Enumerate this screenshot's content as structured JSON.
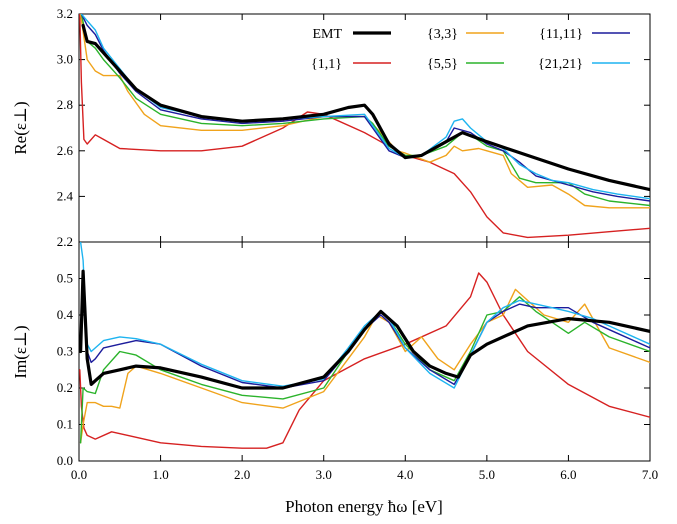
{
  "colors": {
    "EMT": "#000000",
    "{1,1}": "#d62121",
    "{3,3}": "#f0a31c",
    "{5,5}": "#2bb32b",
    "{11,11}": "#1c1c9c",
    "{21,21}": "#1eb4f0"
  },
  "chart_data": [
    {
      "type": "line",
      "panel": "top",
      "ylabel": "Re(ε⊥)",
      "xlim": [
        0,
        7
      ],
      "ylim": [
        2.2,
        3.2
      ],
      "yticks": [
        "2.2",
        "2.4",
        "2.6",
        "2.8",
        "3.0",
        "3.2"
      ],
      "ytick_values": [
        2.2,
        2.4,
        2.6,
        2.8,
        3.0,
        3.2
      ],
      "legend": "top-right",
      "series": [
        {
          "name": "EMT",
          "x": [
            0.05,
            0.1,
            0.2,
            0.3,
            0.5,
            0.7,
            1.0,
            1.5,
            2.0,
            2.5,
            3.0,
            3.3,
            3.5,
            3.6,
            3.8,
            4.0,
            4.2,
            4.5,
            4.7,
            5.0,
            5.5,
            6.0,
            6.5,
            7.0
          ],
          "y": [
            3.15,
            3.08,
            3.07,
            3.03,
            2.95,
            2.87,
            2.8,
            2.75,
            2.73,
            2.74,
            2.76,
            2.79,
            2.8,
            2.76,
            2.63,
            2.57,
            2.58,
            2.64,
            2.68,
            2.64,
            2.58,
            2.52,
            2.47,
            2.43
          ]
        },
        {
          "name": "{1,1}",
          "x": [
            0.01,
            0.03,
            0.06,
            0.1,
            0.2,
            0.3,
            0.5,
            1.0,
            1.5,
            2.0,
            2.5,
            2.8,
            3.0,
            3.5,
            4.0,
            4.3,
            4.6,
            4.8,
            5.0,
            5.2,
            5.5,
            6.0,
            6.5,
            7.0
          ],
          "y": [
            3.2,
            2.9,
            2.65,
            2.63,
            2.67,
            2.65,
            2.61,
            2.6,
            2.6,
            2.62,
            2.7,
            2.77,
            2.76,
            2.68,
            2.58,
            2.55,
            2.5,
            2.42,
            2.31,
            2.24,
            2.22,
            2.23,
            2.245,
            2.26
          ]
        },
        {
          "name": "{3,3}",
          "x": [
            0.02,
            0.1,
            0.2,
            0.3,
            0.5,
            0.6,
            0.8,
            1.0,
            1.5,
            2.0,
            2.5,
            3.0,
            3.5,
            3.7,
            3.9,
            4.0,
            4.3,
            4.5,
            4.6,
            4.7,
            4.9,
            5.0,
            5.2,
            5.3,
            5.5,
            5.8,
            6.0,
            6.2,
            6.5,
            7.0
          ],
          "y": [
            3.2,
            3.0,
            2.95,
            2.93,
            2.93,
            2.86,
            2.76,
            2.71,
            2.69,
            2.69,
            2.71,
            2.75,
            2.75,
            2.68,
            2.6,
            2.59,
            2.55,
            2.58,
            2.62,
            2.6,
            2.61,
            2.6,
            2.58,
            2.5,
            2.44,
            2.45,
            2.41,
            2.36,
            2.35,
            2.35
          ]
        },
        {
          "name": "{5,5}",
          "x": [
            0.03,
            0.1,
            0.2,
            0.3,
            0.5,
            0.7,
            1.0,
            1.5,
            2.0,
            2.5,
            3.0,
            3.5,
            3.6,
            3.8,
            4.0,
            4.2,
            4.5,
            4.7,
            4.8,
            5.0,
            5.2,
            5.4,
            5.6,
            5.8,
            6.0,
            6.2,
            6.5,
            7.0
          ],
          "y": [
            3.2,
            3.08,
            3.05,
            3.0,
            2.92,
            2.83,
            2.76,
            2.72,
            2.71,
            2.72,
            2.74,
            2.75,
            2.72,
            2.62,
            2.58,
            2.58,
            2.62,
            2.68,
            2.67,
            2.62,
            2.6,
            2.48,
            2.46,
            2.46,
            2.46,
            2.41,
            2.38,
            2.36
          ]
        },
        {
          "name": "{11,11}",
          "x": [
            0.03,
            0.1,
            0.2,
            0.3,
            0.5,
            0.7,
            1.0,
            1.5,
            2.0,
            2.5,
            3.0,
            3.5,
            3.6,
            3.8,
            4.0,
            4.2,
            4.5,
            4.6,
            4.8,
            5.0,
            5.2,
            5.4,
            5.6,
            5.8,
            6.0,
            6.3,
            6.6,
            7.0
          ],
          "y": [
            3.2,
            3.15,
            3.11,
            3.04,
            2.94,
            2.86,
            2.78,
            2.74,
            2.72,
            2.73,
            2.75,
            2.75,
            2.7,
            2.6,
            2.57,
            2.58,
            2.64,
            2.7,
            2.68,
            2.63,
            2.6,
            2.55,
            2.49,
            2.47,
            2.45,
            2.42,
            2.4,
            2.38
          ]
        },
        {
          "name": "{21,21}",
          "x": [
            0.03,
            0.1,
            0.2,
            0.3,
            0.5,
            0.7,
            1.0,
            1.5,
            2.0,
            2.5,
            3.0,
            3.5,
            3.6,
            3.8,
            4.0,
            4.2,
            4.5,
            4.6,
            4.7,
            4.8,
            5.0,
            5.2,
            5.4,
            5.6,
            5.8,
            6.0,
            6.3,
            6.6,
            7.0
          ],
          "y": [
            3.2,
            3.17,
            3.13,
            3.05,
            2.96,
            2.87,
            2.79,
            2.75,
            2.73,
            2.74,
            2.75,
            2.76,
            2.71,
            2.61,
            2.57,
            2.58,
            2.66,
            2.73,
            2.74,
            2.7,
            2.64,
            2.61,
            2.54,
            2.5,
            2.47,
            2.46,
            2.43,
            2.41,
            2.39
          ]
        }
      ]
    },
    {
      "type": "line",
      "panel": "bottom",
      "ylabel": "Im(ε⊥)",
      "xlabel": "Photon energy ħω [eV]",
      "xlim": [
        0,
        7
      ],
      "ylim": [
        0,
        0.6
      ],
      "xticks": [
        "0.0",
        "1.0",
        "2.0",
        "3.0",
        "4.0",
        "5.0",
        "6.0",
        "7.0"
      ],
      "xtick_values": [
        0,
        1,
        2,
        3,
        4,
        5,
        6,
        7
      ],
      "yticks": [
        "0.0",
        "0.1",
        "0.2",
        "0.3",
        "0.4",
        "0.5"
      ],
      "ytick_values": [
        0,
        0.1,
        0.2,
        0.3,
        0.4,
        0.5
      ],
      "series": [
        {
          "name": "EMT",
          "x": [
            0.02,
            0.05,
            0.1,
            0.15,
            0.2,
            0.3,
            0.5,
            0.7,
            1.0,
            1.5,
            2.0,
            2.5,
            3.0,
            3.3,
            3.5,
            3.7,
            3.9,
            4.1,
            4.3,
            4.5,
            4.65,
            4.8,
            5.0,
            5.5,
            6.0,
            6.5,
            7.0
          ],
          "y": [
            0.3,
            0.52,
            0.28,
            0.21,
            0.22,
            0.24,
            0.25,
            0.26,
            0.255,
            0.23,
            0.2,
            0.2,
            0.23,
            0.3,
            0.36,
            0.41,
            0.37,
            0.3,
            0.26,
            0.24,
            0.23,
            0.29,
            0.32,
            0.37,
            0.39,
            0.38,
            0.355
          ]
        },
        {
          "name": "{1,1}",
          "x": [
            0.01,
            0.03,
            0.06,
            0.1,
            0.2,
            0.4,
            0.6,
            1.0,
            1.5,
            2.0,
            2.3,
            2.5,
            2.7,
            3.0,
            3.5,
            4.0,
            4.5,
            4.8,
            4.9,
            5.0,
            5.2,
            5.5,
            6.0,
            6.5,
            7.0
          ],
          "y": [
            0.25,
            0.15,
            0.09,
            0.07,
            0.06,
            0.08,
            0.07,
            0.05,
            0.04,
            0.035,
            0.035,
            0.05,
            0.14,
            0.22,
            0.28,
            0.32,
            0.37,
            0.45,
            0.515,
            0.49,
            0.4,
            0.3,
            0.21,
            0.15,
            0.12
          ]
        },
        {
          "name": "{3,3}",
          "x": [
            0.02,
            0.05,
            0.1,
            0.2,
            0.3,
            0.4,
            0.5,
            0.6,
            0.7,
            1.0,
            1.5,
            2.0,
            2.5,
            3.0,
            3.3,
            3.5,
            3.65,
            3.8,
            4.0,
            4.2,
            4.4,
            4.6,
            4.8,
            5.0,
            5.2,
            5.35,
            5.5,
            5.7,
            6.0,
            6.2,
            6.5,
            7.0
          ],
          "y": [
            0.05,
            0.1,
            0.16,
            0.16,
            0.15,
            0.15,
            0.145,
            0.24,
            0.26,
            0.24,
            0.2,
            0.16,
            0.145,
            0.19,
            0.28,
            0.34,
            0.4,
            0.38,
            0.3,
            0.34,
            0.28,
            0.25,
            0.32,
            0.38,
            0.4,
            0.47,
            0.44,
            0.4,
            0.38,
            0.43,
            0.31,
            0.27
          ]
        },
        {
          "name": "{5,5}",
          "x": [
            0.02,
            0.05,
            0.1,
            0.2,
            0.3,
            0.5,
            0.7,
            1.0,
            1.5,
            2.0,
            2.5,
            3.0,
            3.3,
            3.5,
            3.7,
            3.8,
            4.0,
            4.3,
            4.6,
            4.8,
            5.0,
            5.2,
            5.4,
            5.6,
            5.8,
            6.0,
            6.2,
            6.5,
            7.0
          ],
          "y": [
            0.05,
            0.2,
            0.19,
            0.185,
            0.25,
            0.3,
            0.29,
            0.25,
            0.21,
            0.18,
            0.17,
            0.2,
            0.3,
            0.36,
            0.41,
            0.39,
            0.32,
            0.25,
            0.22,
            0.3,
            0.4,
            0.41,
            0.45,
            0.41,
            0.38,
            0.35,
            0.38,
            0.34,
            0.3
          ]
        },
        {
          "name": "{11,11}",
          "x": [
            0.02,
            0.05,
            0.1,
            0.15,
            0.2,
            0.3,
            0.5,
            0.7,
            1.0,
            1.5,
            2.0,
            2.5,
            3.0,
            3.3,
            3.5,
            3.7,
            3.8,
            4.0,
            4.3,
            4.6,
            4.8,
            5.0,
            5.2,
            5.4,
            5.6,
            5.8,
            6.0,
            6.3,
            6.6,
            7.0
          ],
          "y": [
            0.35,
            0.47,
            0.3,
            0.27,
            0.28,
            0.31,
            0.32,
            0.33,
            0.32,
            0.26,
            0.215,
            0.2,
            0.22,
            0.3,
            0.36,
            0.4,
            0.38,
            0.31,
            0.25,
            0.21,
            0.29,
            0.38,
            0.41,
            0.43,
            0.42,
            0.42,
            0.42,
            0.38,
            0.35,
            0.31
          ]
        },
        {
          "name": "{21,21}",
          "x": [
            0.02,
            0.05,
            0.1,
            0.15,
            0.2,
            0.3,
            0.5,
            0.7,
            1.0,
            1.5,
            2.0,
            2.5,
            3.0,
            3.3,
            3.5,
            3.7,
            3.8,
            4.0,
            4.3,
            4.6,
            4.8,
            5.0,
            5.2,
            5.4,
            5.6,
            5.8,
            6.0,
            6.3,
            6.6,
            7.0
          ],
          "y": [
            0.6,
            0.55,
            0.32,
            0.3,
            0.31,
            0.33,
            0.34,
            0.335,
            0.32,
            0.265,
            0.22,
            0.205,
            0.225,
            0.31,
            0.37,
            0.41,
            0.39,
            0.31,
            0.24,
            0.2,
            0.29,
            0.38,
            0.42,
            0.44,
            0.43,
            0.42,
            0.41,
            0.39,
            0.36,
            0.32
          ]
        }
      ]
    }
  ]
}
